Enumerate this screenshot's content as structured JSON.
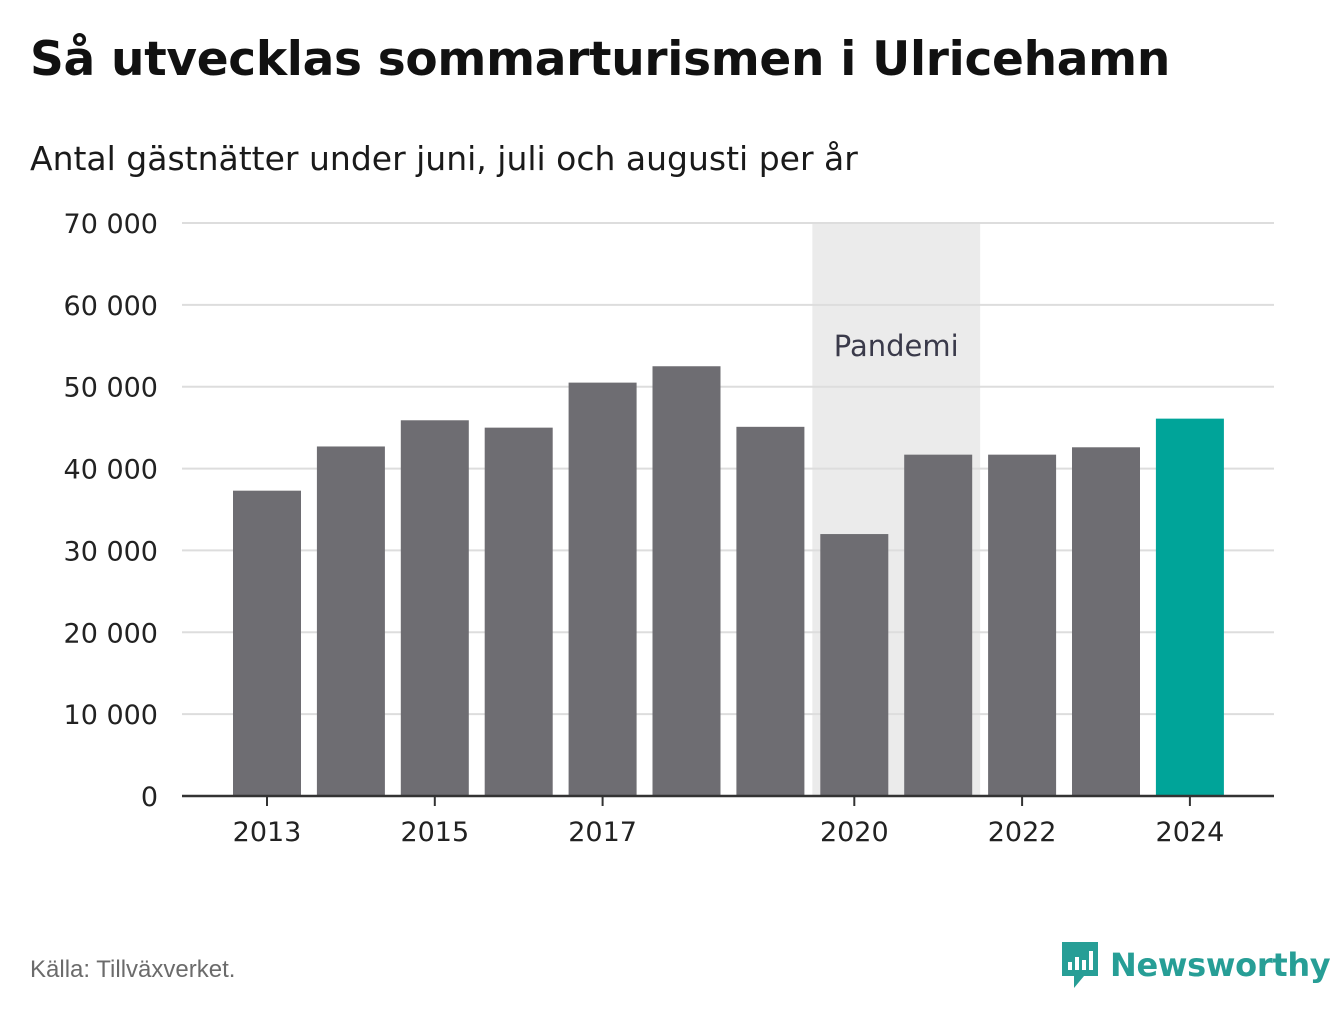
{
  "title": "Så utvecklas sommarturismen i Ulricehamn",
  "subtitle": "Antal gästnätter under juni, juli och augusti per år",
  "source": "Källa: Tillväxverket.",
  "brand": {
    "name": "Newsworthy",
    "icon": "newsworthy-logo-icon"
  },
  "colors": {
    "bar": "#6e6d72",
    "highlight": "#00a499",
    "band": "#ebebeb",
    "grid": "#dddddd",
    "axis": "#333333",
    "brand": "#279e96"
  },
  "chart_data": {
    "type": "bar",
    "categories": [
      "2013",
      "2014",
      "2015",
      "2016",
      "2017",
      "2018",
      "2019",
      "2020",
      "2021",
      "2022",
      "2023",
      "2024"
    ],
    "values": [
      37300,
      42700,
      45900,
      45000,
      50500,
      52500,
      45100,
      32000,
      41700,
      41700,
      42600,
      46100
    ],
    "highlight_index": 11,
    "xtick_labels": [
      "2013",
      "2015",
      "2017",
      "2020",
      "2022",
      "2024"
    ],
    "ylim": [
      0,
      70000
    ],
    "yticks": [
      0,
      10000,
      20000,
      30000,
      40000,
      50000,
      60000,
      70000
    ],
    "ytick_labels": [
      "0",
      "10 000",
      "20 000",
      "30 000",
      "40 000",
      "50 000",
      "60 000",
      "70 000"
    ],
    "grid": true,
    "band": {
      "from": "2020",
      "to": "2021",
      "label": "Pandemi"
    }
  }
}
